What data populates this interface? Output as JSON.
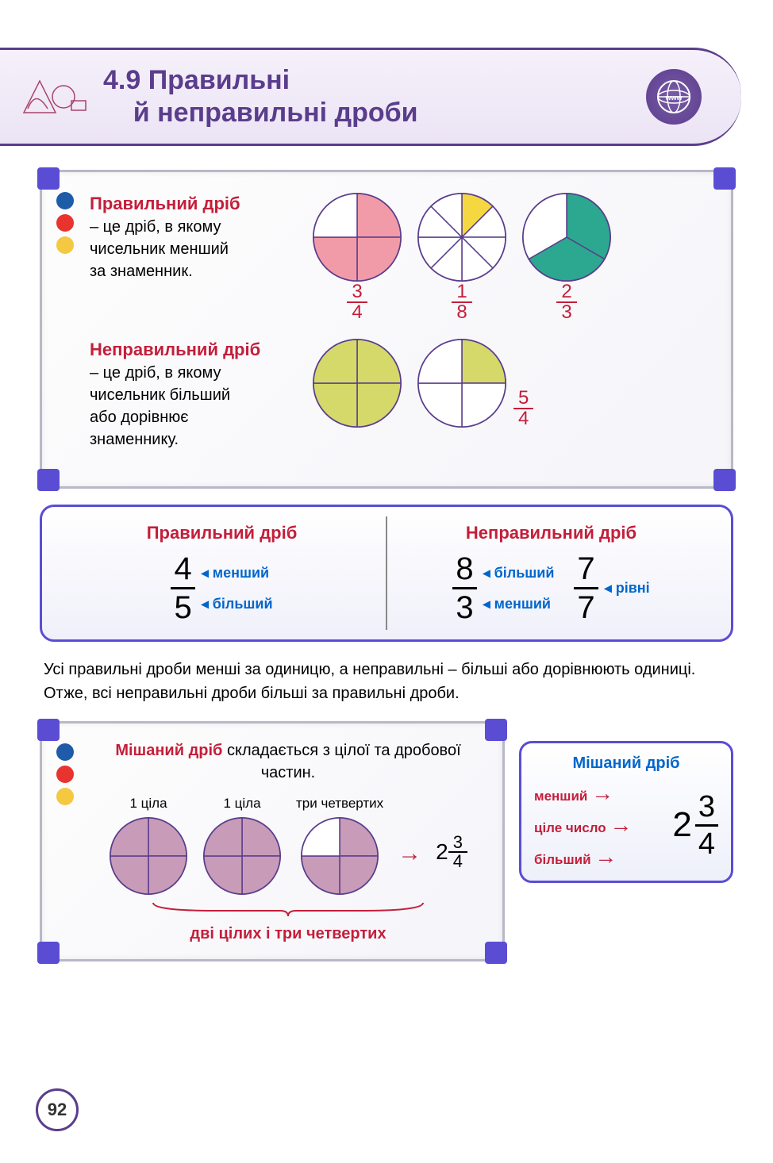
{
  "header": {
    "section_num": "4.9",
    "title_line1": "Правильні",
    "title_line2": "й неправильні дроби",
    "www_label": "www"
  },
  "colors": {
    "purple": "#5a3d8c",
    "red": "#c41e3a",
    "blue": "#0066cc",
    "dot_blue": "#1e5ba8",
    "dot_red": "#e8332f",
    "dot_yellow": "#f5c842",
    "pie_pink": "#f29ba8",
    "pie_yellow": "#f5d742",
    "pie_teal": "#2ba88f",
    "pie_olive": "#d4d96a",
    "pie_mauve": "#c89bb8",
    "pie_stroke": "#5a3d8c",
    "board_corner": "#5a4dd4"
  },
  "def1": {
    "title": "Правильний дріб",
    "body1": "– це дріб, в якому",
    "body2": "чисельник менший",
    "body3": "за знаменник.",
    "pies": [
      {
        "slices": 4,
        "filled": 3,
        "color": "#f29ba8",
        "frac_n": "3",
        "frac_d": "4",
        "radius": 55
      },
      {
        "slices": 8,
        "filled": 1,
        "color": "#f5d742",
        "frac_n": "1",
        "frac_d": "8",
        "radius": 55
      },
      {
        "slices": 3,
        "filled": 2,
        "color": "#2ba88f",
        "frac_n": "2",
        "frac_d": "3",
        "radius": 55
      }
    ]
  },
  "def2": {
    "title": "Неправильний дріб",
    "body1": "– це дріб, в якому",
    "body2": "чисельник більший",
    "body3": "або дорівнює",
    "body4": "знаменнику.",
    "pies": [
      {
        "slices": 4,
        "filled": 4,
        "color": "#d4d96a",
        "radius": 55
      },
      {
        "slices": 4,
        "filled": 1,
        "color": "#d4d96a",
        "radius": 55
      }
    ],
    "frac_n": "5",
    "frac_d": "4"
  },
  "compare": {
    "left_title": "Правильний дріб",
    "right_title": "Неправильний дріб",
    "smaller": "менший",
    "bigger": "більший",
    "equal": "рівні",
    "f1_n": "4",
    "f1_d": "5",
    "f2_n": "8",
    "f2_d": "3",
    "f3_n": "7",
    "f3_d": "7"
  },
  "body_text": "Усі правильні дроби менші за одиницю, а неправильні – більші або дорівнюють одиниці. Отже, всі неправильні дроби більші за правильні дроби.",
  "mixed": {
    "title": "Мішаний дріб",
    "body": " складається з цілої та дробової частин.",
    "lbl_whole": "1 ціла",
    "lbl_frac": "три четвертих",
    "result_whole": "2",
    "result_n": "3",
    "result_d": "4",
    "brace": "дві цілих і три четвертих",
    "pies": [
      {
        "slices": 4,
        "filled": 4,
        "color": "#c89bb8",
        "radius": 48
      },
      {
        "slices": 4,
        "filled": 4,
        "color": "#c89bb8",
        "radius": 48
      },
      {
        "slices": 4,
        "filled": 3,
        "color": "#c89bb8",
        "radius": 48
      }
    ]
  },
  "sidebox": {
    "title": "Мішаний дріб",
    "lbl1": "менший",
    "lbl2": "ціле число",
    "lbl3": "більший",
    "whole": "2",
    "n": "3",
    "d": "4"
  },
  "page_number": "92"
}
